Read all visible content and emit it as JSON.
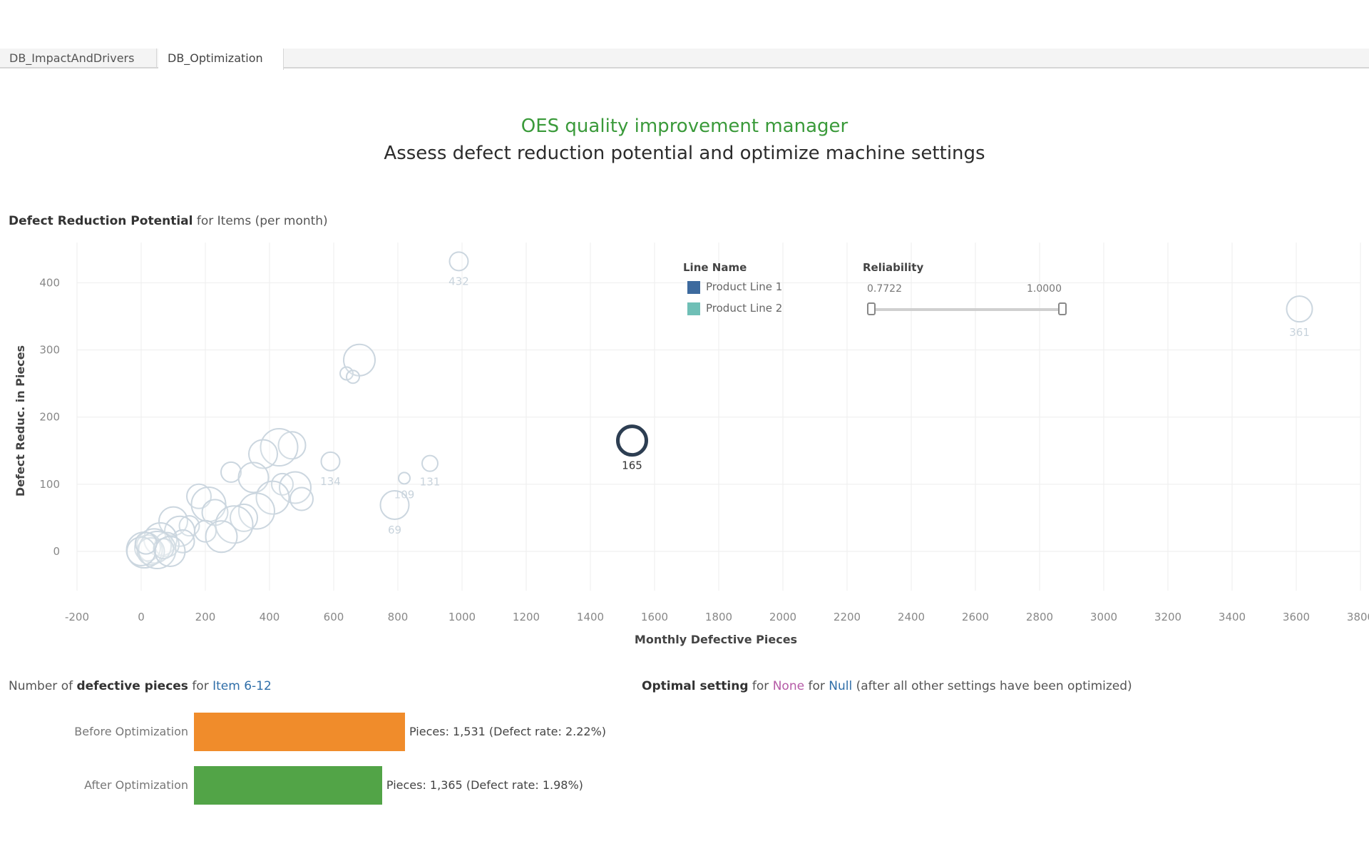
{
  "tabs": [
    {
      "label": "DB_ImpactAndDrivers"
    },
    {
      "label": "DB_Optimization"
    }
  ],
  "header": {
    "title": "OES quality improvement manager",
    "subtitle": "Assess defect reduction potential and optimize machine settings"
  },
  "scatter_section": {
    "title_bold": "Defect Reduction Potential",
    "title_rest": " for Items (per month)"
  },
  "legend": {
    "title": "Line Name",
    "items": [
      {
        "label": "Product Line 1",
        "color": "#3d6a9e"
      },
      {
        "label": "Product Line 2",
        "color": "#6fbfb6"
      }
    ]
  },
  "reliability": {
    "title": "Reliability",
    "min_label": "0.7722",
    "max_label": "1.0000",
    "min": 0.7722,
    "max": 1.0
  },
  "bars_section": {
    "prefix": "Number of ",
    "bold": "defective pieces",
    "middle": " for ",
    "item": "Item 6-12"
  },
  "optimal_section": {
    "bold": "Optimal setting",
    "for1": " for ",
    "none": "None",
    "for2": " for ",
    "null": "Null",
    "rest": " (after all other settings have been optimized)"
  },
  "chart_data": [
    {
      "type": "scatter",
      "title": "Defect Reduction Potential for Items (per month)",
      "xlabel": "Monthly Defective Pieces",
      "ylabel": "Defect Reduc. in Pieces",
      "xlim": [
        -200,
        3800
      ],
      "ylim": [
        0,
        450
      ],
      "xticks": [
        -200,
        0,
        200,
        400,
        600,
        800,
        1000,
        1200,
        1400,
        1600,
        1800,
        2000,
        2200,
        2400,
        2600,
        2800,
        3000,
        3200,
        3400,
        3600,
        3800
      ],
      "yticks": [
        0,
        100,
        200,
        300,
        400
      ],
      "grid": true,
      "legend_position": "top-center",
      "points": [
        {
          "x": 990,
          "y": 432,
          "label": "432",
          "highlight": false
        },
        {
          "x": 3610,
          "y": 361,
          "label": "361",
          "highlight": false
        },
        {
          "x": 1530,
          "y": 165,
          "label": "165",
          "highlight": true
        },
        {
          "x": 590,
          "y": 134,
          "label": "134",
          "highlight": false
        },
        {
          "x": 900,
          "y": 131,
          "label": "131",
          "highlight": false
        },
        {
          "x": 820,
          "y": 109,
          "label": "109",
          "highlight": false
        },
        {
          "x": 790,
          "y": 69,
          "label": "69",
          "highlight": false
        },
        {
          "x": 680,
          "y": 285,
          "label": "",
          "highlight": false
        },
        {
          "x": 640,
          "y": 265,
          "label": "",
          "highlight": false
        },
        {
          "x": 660,
          "y": 260,
          "label": "",
          "highlight": false
        },
        {
          "x": 470,
          "y": 158,
          "label": "",
          "highlight": false
        },
        {
          "x": 430,
          "y": 155,
          "label": "",
          "highlight": false
        },
        {
          "x": 380,
          "y": 145,
          "label": "",
          "highlight": false
        },
        {
          "x": 280,
          "y": 118,
          "label": "",
          "highlight": false
        },
        {
          "x": 350,
          "y": 110,
          "label": "",
          "highlight": false
        },
        {
          "x": 440,
          "y": 100,
          "label": "",
          "highlight": false
        },
        {
          "x": 480,
          "y": 95,
          "label": "",
          "highlight": false
        },
        {
          "x": 500,
          "y": 78,
          "label": "",
          "highlight": false
        },
        {
          "x": 410,
          "y": 80,
          "label": "",
          "highlight": false
        },
        {
          "x": 180,
          "y": 82,
          "label": "",
          "highlight": false
        },
        {
          "x": 210,
          "y": 70,
          "label": "",
          "highlight": false
        },
        {
          "x": 230,
          "y": 58,
          "label": "",
          "highlight": false
        },
        {
          "x": 360,
          "y": 60,
          "label": "",
          "highlight": false
        },
        {
          "x": 320,
          "y": 50,
          "label": "",
          "highlight": false
        },
        {
          "x": 290,
          "y": 40,
          "label": "",
          "highlight": false
        },
        {
          "x": 100,
          "y": 45,
          "label": "",
          "highlight": false
        },
        {
          "x": 150,
          "y": 38,
          "label": "",
          "highlight": false
        },
        {
          "x": 120,
          "y": 30,
          "label": "",
          "highlight": false
        },
        {
          "x": 200,
          "y": 30,
          "label": "",
          "highlight": false
        },
        {
          "x": 250,
          "y": 22,
          "label": "",
          "highlight": false
        },
        {
          "x": 130,
          "y": 15,
          "label": "",
          "highlight": false
        },
        {
          "x": 60,
          "y": 18,
          "label": "",
          "highlight": false
        },
        {
          "x": 80,
          "y": 10,
          "label": "",
          "highlight": false
        },
        {
          "x": 40,
          "y": 8,
          "label": "",
          "highlight": false
        },
        {
          "x": 20,
          "y": 5,
          "label": "",
          "highlight": false
        },
        {
          "x": 10,
          "y": 2,
          "label": "",
          "highlight": false
        },
        {
          "x": 30,
          "y": 0,
          "label": "",
          "highlight": false
        },
        {
          "x": 50,
          "y": 2,
          "label": "",
          "highlight": false
        },
        {
          "x": 0,
          "y": 0,
          "label": "",
          "highlight": false
        },
        {
          "x": 70,
          "y": 4,
          "label": "",
          "highlight": false
        },
        {
          "x": 90,
          "y": 0,
          "label": "",
          "highlight": false
        },
        {
          "x": 15,
          "y": 12,
          "label": "",
          "highlight": false
        }
      ]
    },
    {
      "type": "bar",
      "orientation": "horizontal",
      "categories": [
        "Before Optimization",
        "After Optimization"
      ],
      "values": [
        1531,
        1365
      ],
      "colors": [
        "#f08c2b",
        "#52a447"
      ],
      "data_labels": [
        "Pieces:  1,531 (Defect rate: 2.22%)",
        "Pieces:  1,365 (Defect rate: 1.98%)"
      ]
    }
  ]
}
